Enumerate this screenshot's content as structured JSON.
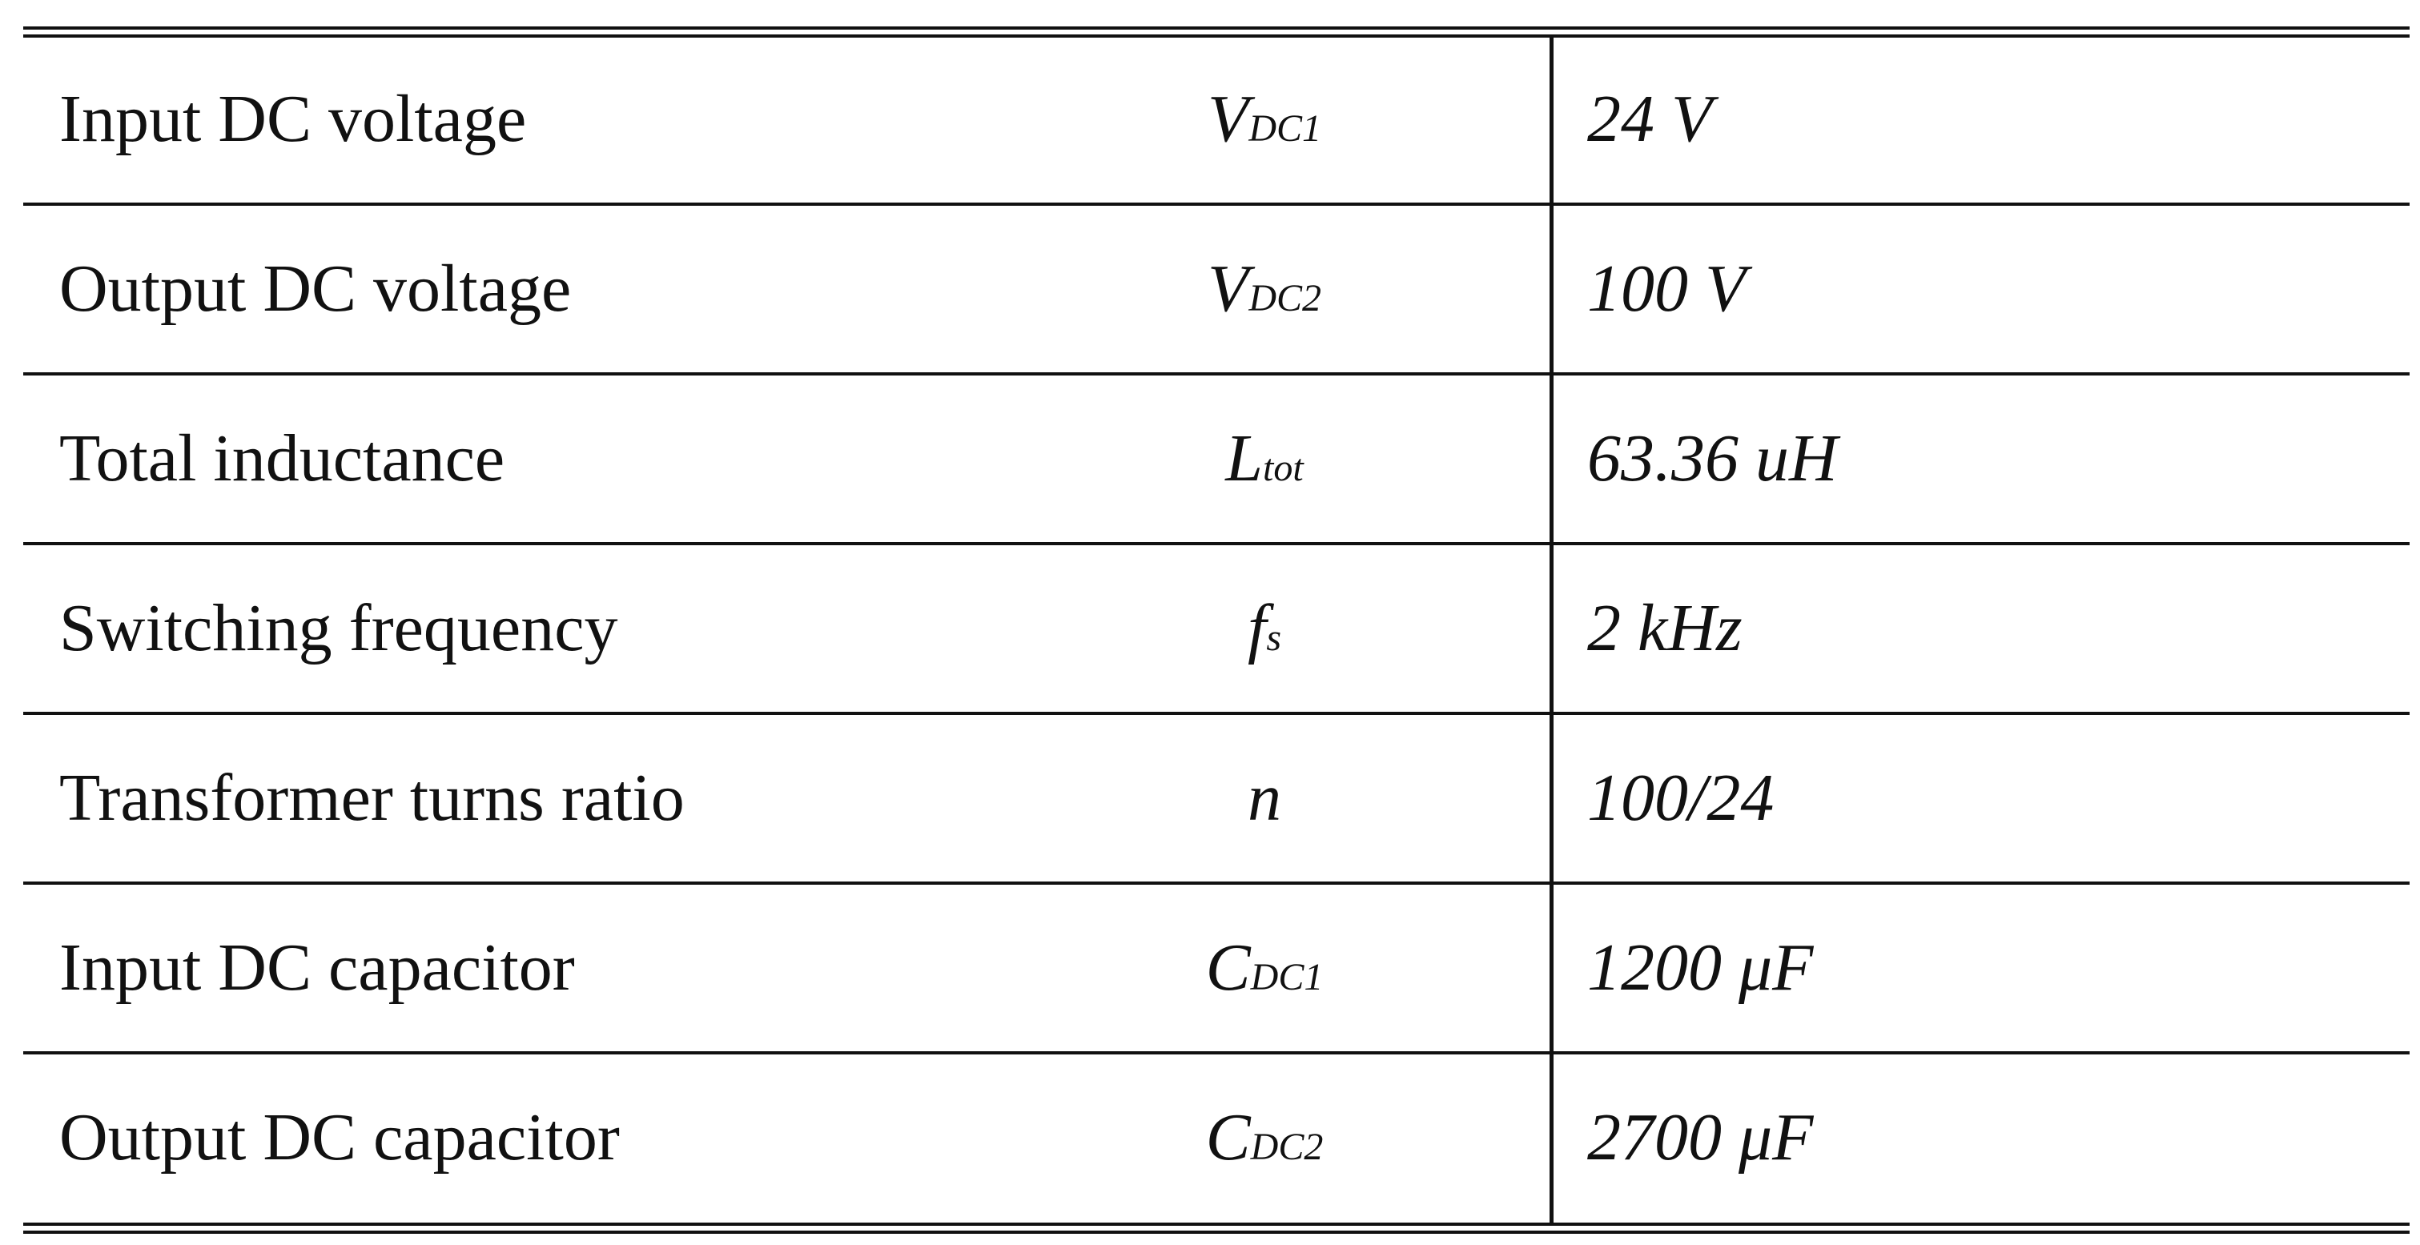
{
  "table": {
    "rows": [
      {
        "parameter": "Input DC voltage",
        "symbol": "V",
        "subscript": "DC1",
        "value": "24 V"
      },
      {
        "parameter": "Output DC voltage",
        "symbol": "V",
        "subscript": "DC2",
        "value": "100 V"
      },
      {
        "parameter": "Total inductance",
        "symbol": "L",
        "subscript": "tot",
        "value": "63.36 uH"
      },
      {
        "parameter": "Switching frequency",
        "symbol": "f",
        "subscript": "s",
        "value": "2 kHz"
      },
      {
        "parameter": "Transformer turns ratio",
        "symbol": "n",
        "subscript": null,
        "value": "100/24"
      },
      {
        "parameter": "Input DC capacitor",
        "symbol": "C",
        "subscript": "DC1",
        "value": "1200 μF"
      },
      {
        "parameter": "Output DC capacitor",
        "symbol": "C",
        "subscript": "DC2",
        "value": "2700 μF"
      }
    ]
  }
}
